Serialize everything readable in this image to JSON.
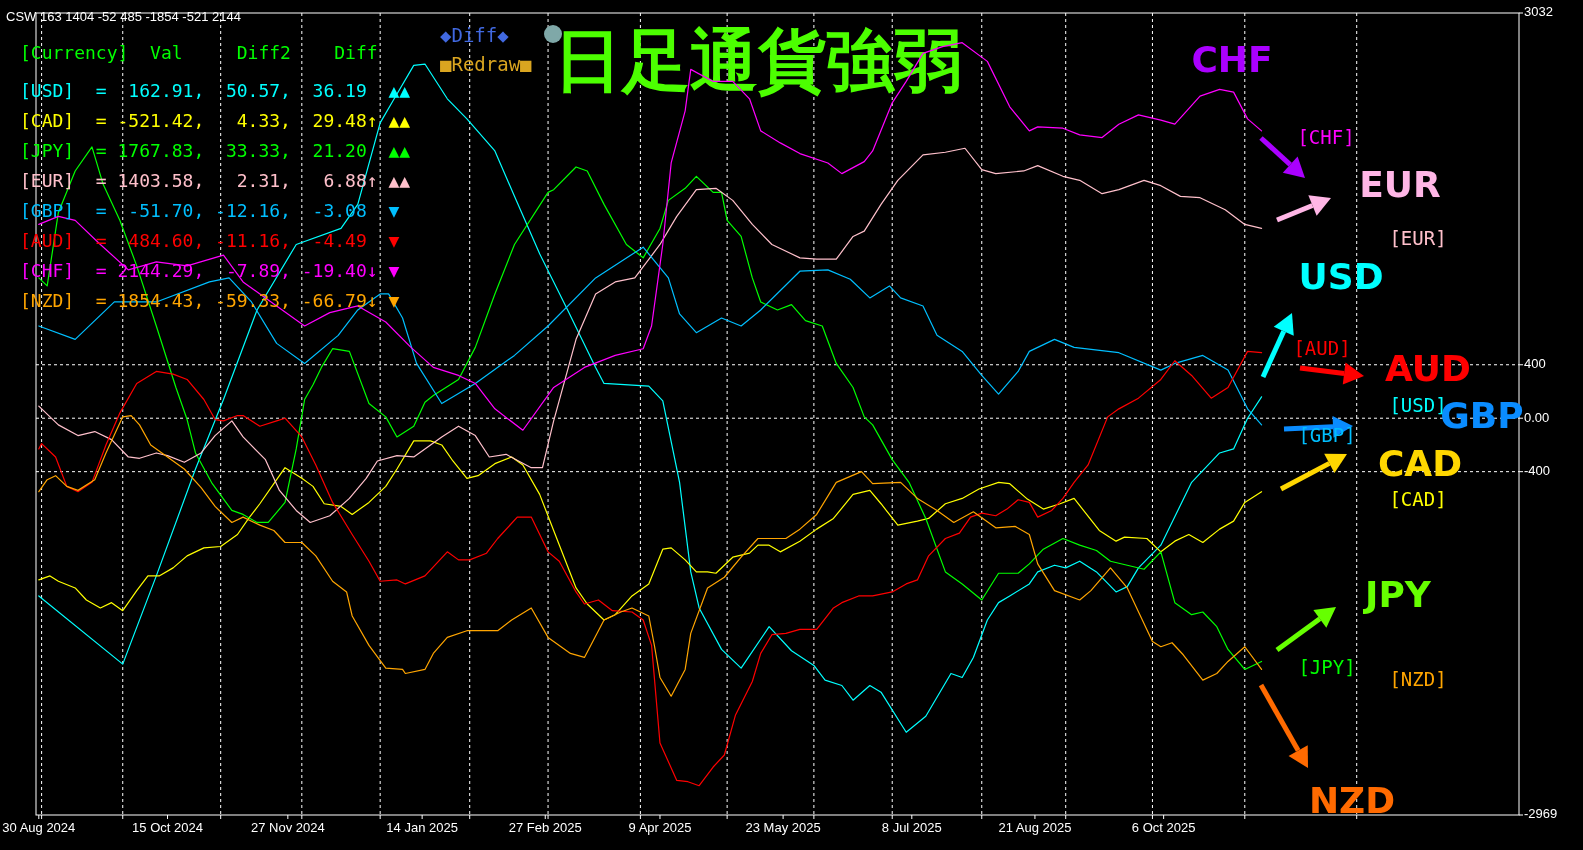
{
  "chart_data": {
    "type": "line",
    "title": "日足通貨強弱",
    "xlim": [
      "2024-08-29",
      "2026-02-10"
    ],
    "xticks": [
      {
        "value": "2024-08-30",
        "label": "30 Aug 2024"
      },
      {
        "value": "2024-10-15",
        "label": "15 Oct 2024"
      },
      {
        "value": "2024-11-27",
        "label": "27 Nov 2024"
      },
      {
        "value": "2025-01-14",
        "label": "14 Jan 2025"
      },
      {
        "value": "2025-02-27",
        "label": "27 Feb 2025"
      },
      {
        "value": "2025-04-09",
        "label": "9 Apr 2025"
      },
      {
        "value": "2025-05-23",
        "label": "23 May 2025"
      },
      {
        "value": "2025-07-08",
        "label": "8 Jul 2025"
      },
      {
        "value": "2025-08-21",
        "label": "21 Aug 2025"
      },
      {
        "value": "2025-10-06",
        "label": "6 Oct 2025"
      },
      {
        "value": "2024-08-31",
        "label": null
      },
      {
        "value": "2024-09-29",
        "label": null
      },
      {
        "value": "2024-11-03",
        "label": null
      },
      {
        "value": "2024-12-02",
        "label": null
      },
      {
        "value": "2024-12-30",
        "label": null
      },
      {
        "value": "2025-01-31",
        "label": null
      },
      {
        "value": "2025-02-28",
        "label": null
      },
      {
        "value": "2025-04-02",
        "label": null
      },
      {
        "value": "2025-05-03",
        "label": null
      },
      {
        "value": "2025-06-03",
        "label": null
      },
      {
        "value": "2025-07-01",
        "label": null
      },
      {
        "value": "2025-08-02",
        "label": null
      },
      {
        "value": "2025-09-01",
        "label": null
      },
      {
        "value": "2025-10-02",
        "label": null
      },
      {
        "value": "2025-11-04",
        "label": null
      },
      {
        "value": "2025-12-14",
        "label": null
      }
    ],
    "ylim": [
      -2969,
      3032
    ],
    "yticks": [
      3032,
      400,
      {
        "value": 0,
        "label": "0.00"
      },
      -400,
      -2969
    ],
    "grid": true,
    "series": [
      {
        "color": "#00ffff",
        "x": [
          "2024-08-30",
          "2024-09-29",
          "2024-10-11",
          "2024-10-25",
          "2024-11-04",
          "2024-11-16",
          "2024-11-30",
          "2024-12-16",
          "2024-12-22",
          "2024-12-30",
          "2025-01-04",
          "2025-01-11",
          "2025-01-15",
          "2025-01-23",
          "2025-01-30",
          "2025-02-09",
          "2025-02-16",
          "2025-02-25",
          "2025-03-07",
          "2025-03-17",
          "2025-03-20",
          "2025-04-05",
          "2025-04-10",
          "2025-04-16",
          "2025-04-20",
          "2025-04-23",
          "2025-05-01",
          "2025-05-08",
          "2025-05-18",
          "2025-05-26",
          "2025-06-03",
          "2025-06-07",
          "2025-06-13",
          "2025-06-17",
          "2025-06-23",
          "2025-06-27",
          "2025-07-06",
          "2025-07-13",
          "2025-07-22",
          "2025-07-26",
          "2025-07-30",
          "2025-08-04",
          "2025-08-08",
          "2025-08-12",
          "2025-08-19",
          "2025-08-22",
          "2025-08-28",
          "2025-09-01",
          "2025-09-06",
          "2025-09-12",
          "2025-09-19",
          "2025-09-23",
          "2025-09-27",
          "2025-10-05",
          "2025-10-16",
          "2025-10-26",
          "2025-10-31",
          "2025-11-05",
          "2025-11-10"
        ],
        "values": [
          -1330,
          -1840,
          -1180,
          -380,
          140,
          810,
          1300,
          1420,
          1600,
          2210,
          2390,
          2640,
          2650,
          2390,
          2240,
          2000,
          1660,
          1230,
          810,
          380,
          260,
          240,
          130,
          -480,
          -1150,
          -1420,
          -1730,
          -1870,
          -1560,
          -1740,
          -1850,
          -1960,
          -2000,
          -2110,
          -2000,
          -2050,
          -2350,
          -2230,
          -1910,
          -1940,
          -1790,
          -1510,
          -1380,
          -1330,
          -1240,
          -1150,
          -1100,
          -1120,
          -1070,
          -1150,
          -1300,
          -1260,
          -1120,
          -950,
          -480,
          -260,
          -230,
          0,
          160
        ]
      },
      {
        "color": "#ffff00",
        "x": [
          "2024-08-30",
          "2024-09-03",
          "2024-09-06",
          "2024-09-12",
          "2024-09-16",
          "2024-09-21",
          "2024-09-25",
          "2024-09-29",
          "2024-10-04",
          "2024-10-08",
          "2024-10-12",
          "2024-10-17",
          "2024-10-22",
          "2024-10-28",
          "2024-11-03",
          "2024-11-09",
          "2024-11-13",
          "2024-11-17",
          "2024-11-23",
          "2024-11-26",
          "2024-12-02",
          "2024-12-06",
          "2024-12-10",
          "2024-12-16",
          "2024-12-20",
          "2024-12-26",
          "2025-01-01",
          "2025-01-05",
          "2025-01-11",
          "2025-01-17",
          "2025-01-21",
          "2025-01-25",
          "2025-01-30",
          "2025-02-03",
          "2025-02-09",
          "2025-02-15",
          "2025-02-19",
          "2025-02-25",
          "2025-03-02",
          "2025-03-10",
          "2025-03-14",
          "2025-03-20",
          "2025-03-24",
          "2025-03-30",
          "2025-04-05",
          "2025-04-10",
          "2025-04-13",
          "2025-04-18",
          "2025-04-22",
          "2025-04-26",
          "2025-04-29",
          "2025-05-05",
          "2025-05-11",
          "2025-05-14",
          "2025-05-18",
          "2025-05-22",
          "2025-05-29",
          "2025-06-04",
          "2025-06-10",
          "2025-06-17",
          "2025-06-23",
          "2025-06-27",
          "2025-07-03",
          "2025-07-10",
          "2025-07-14",
          "2025-07-20",
          "2025-07-26",
          "2025-08-01",
          "2025-08-08",
          "2025-08-12",
          "2025-08-18",
          "2025-08-24",
          "2025-08-30",
          "2025-09-04",
          "2025-09-13",
          "2025-09-19",
          "2025-09-22",
          "2025-09-30",
          "2025-10-05",
          "2025-10-10",
          "2025-10-15",
          "2025-10-20",
          "2025-10-26",
          "2025-10-31",
          "2025-11-04",
          "2025-11-10"
        ],
        "values": [
          -1210,
          -1180,
          -1220,
          -1270,
          -1360,
          -1420,
          -1380,
          -1440,
          -1290,
          -1180,
          -1180,
          -1120,
          -1030,
          -970,
          -960,
          -870,
          -750,
          -640,
          -460,
          -370,
          -450,
          -510,
          -640,
          -660,
          -720,
          -630,
          -510,
          -380,
          -170,
          -170,
          -200,
          -320,
          -450,
          -430,
          -340,
          -290,
          -350,
          -570,
          -840,
          -1270,
          -1390,
          -1510,
          -1470,
          -1330,
          -1240,
          -980,
          -970,
          -1060,
          -1150,
          -1150,
          -1160,
          -1040,
          -1010,
          -950,
          -950,
          -1000,
          -920,
          -830,
          -750,
          -570,
          -540,
          -640,
          -800,
          -770,
          -750,
          -640,
          -600,
          -530,
          -480,
          -490,
          -600,
          -680,
          -640,
          -600,
          -840,
          -920,
          -890,
          -900,
          -1000,
          -920,
          -870,
          -930,
          -830,
          -770,
          -630,
          -550
        ]
      },
      {
        "color": "#00ff00",
        "x": [
          "2024-08-30",
          "2024-09-02",
          "2024-09-06",
          "2024-09-12",
          "2024-09-18",
          "2024-09-22",
          "2024-09-28",
          "2024-10-04",
          "2024-10-11",
          "2024-10-18",
          "2024-10-22",
          "2024-10-25",
          "2024-10-31",
          "2024-11-07",
          "2024-11-11",
          "2024-11-16",
          "2024-11-20",
          "2024-11-26",
          "2024-11-30",
          "2024-12-03",
          "2024-12-06",
          "2024-12-09",
          "2024-12-13",
          "2024-12-19",
          "2024-12-26",
          "2025-01-01",
          "2025-01-05",
          "2025-01-11",
          "2025-01-15",
          "2025-01-18",
          "2025-01-27",
          "2025-02-02",
          "2025-02-09",
          "2025-02-16",
          "2025-02-28",
          "2025-03-02",
          "2025-03-10",
          "2025-03-14",
          "2025-03-20",
          "2025-03-28",
          "2025-04-03",
          "2025-04-09",
          "2025-04-12",
          "2025-04-18",
          "2025-04-22",
          "2025-04-28",
          "2025-05-01",
          "2025-05-03",
          "2025-05-08",
          "2025-05-12",
          "2025-05-15",
          "2025-05-21",
          "2025-05-26",
          "2025-05-31",
          "2025-06-06",
          "2025-06-11",
          "2025-06-17",
          "2025-06-21",
          "2025-06-24",
          "2025-07-01",
          "2025-07-07",
          "2025-07-13",
          "2025-07-20",
          "2025-07-26",
          "2025-08-02",
          "2025-08-08",
          "2025-08-15",
          "2025-08-19",
          "2025-08-24",
          "2025-08-31",
          "2025-09-06",
          "2025-09-12",
          "2025-09-17",
          "2025-09-23",
          "2025-09-29",
          "2025-10-05",
          "2025-10-10",
          "2025-10-16",
          "2025-10-20",
          "2025-10-25",
          "2025-10-29",
          "2025-11-04",
          "2025-11-10"
        ],
        "values": [
          1050,
          990,
          1540,
          1850,
          2030,
          1750,
          1480,
          1140,
          690,
          230,
          -10,
          -260,
          -490,
          -690,
          -720,
          -780,
          -780,
          -630,
          -230,
          140,
          250,
          380,
          520,
          500,
          110,
          10,
          -140,
          -60,
          120,
          170,
          290,
          530,
          930,
          1300,
          1690,
          1710,
          1880,
          1850,
          1600,
          1300,
          1200,
          1420,
          1630,
          1720,
          1810,
          1690,
          1690,
          1480,
          1360,
          1050,
          870,
          810,
          850,
          730,
          690,
          410,
          230,
          10,
          -50,
          -310,
          -480,
          -750,
          -1150,
          -1240,
          -1360,
          -1160,
          -1160,
          -1090,
          -980,
          -900,
          -950,
          -990,
          -1070,
          -1100,
          -1130,
          -1000,
          -1380,
          -1470,
          -1450,
          -1560,
          -1730,
          -1880,
          -1820
        ]
      },
      {
        "color": "#ffc0cb",
        "x": [
          "2024-08-30",
          "2024-09-06",
          "2024-09-13",
          "2024-09-19",
          "2024-09-25",
          "2024-10-01",
          "2024-10-05",
          "2024-10-11",
          "2024-10-15",
          "2024-10-21",
          "2024-10-27",
          "2024-11-01",
          "2024-11-07",
          "2024-11-11",
          "2024-11-19",
          "2024-11-24",
          "2024-11-30",
          "2024-12-05",
          "2024-12-12",
          "2024-12-19",
          "2024-12-25",
          "2024-12-29",
          "2025-01-05",
          "2025-01-11",
          "2025-01-21",
          "2025-01-27",
          "2025-02-02",
          "2025-02-07",
          "2025-02-13",
          "2025-02-22",
          "2025-02-26",
          "2025-03-02",
          "2025-03-10",
          "2025-03-17",
          "2025-03-24",
          "2025-03-31",
          "2025-04-09",
          "2025-04-15",
          "2025-04-22",
          "2025-04-29",
          "2025-05-05",
          "2025-05-12",
          "2025-05-19",
          "2025-05-29",
          "2025-06-04",
          "2025-06-11",
          "2025-06-17",
          "2025-06-21",
          "2025-06-27",
          "2025-07-03",
          "2025-07-12",
          "2025-07-20",
          "2025-07-27",
          "2025-08-02",
          "2025-08-07",
          "2025-08-17",
          "2025-08-22",
          "2025-08-31",
          "2025-09-06",
          "2025-09-14",
          "2025-09-20",
          "2025-09-29",
          "2025-10-05",
          "2025-10-12",
          "2025-10-19",
          "2025-10-28",
          "2025-11-04",
          "2025-11-10"
        ],
        "values": [
          90,
          -50,
          -130,
          -100,
          -160,
          -290,
          -300,
          -260,
          -280,
          -330,
          -260,
          -130,
          -20,
          -140,
          -310,
          -540,
          -690,
          -780,
          -730,
          -600,
          -450,
          -320,
          -280,
          -290,
          -140,
          -60,
          -130,
          -290,
          -270,
          -370,
          -370,
          -20,
          590,
          930,
          1020,
          1050,
          1300,
          1510,
          1710,
          1720,
          1630,
          1450,
          1300,
          1200,
          1190,
          1190,
          1360,
          1400,
          1600,
          1780,
          1970,
          1990,
          2020,
          1860,
          1830,
          1850,
          1890,
          1810,
          1780,
          1680,
          1710,
          1780,
          1740,
          1660,
          1650,
          1560,
          1450,
          1420
        ]
      },
      {
        "color": "#00bfff",
        "x": [
          "2024-08-30",
          "2024-09-12",
          "2024-09-26",
          "2024-10-11",
          "2024-10-30",
          "2024-11-06",
          "2024-11-14",
          "2024-11-23",
          "2024-12-03",
          "2024-12-15",
          "2024-12-22",
          "2024-12-30",
          "2025-01-02",
          "2025-01-07",
          "2025-01-12",
          "2025-01-21",
          "2025-02-02",
          "2025-02-16",
          "2025-02-28",
          "2025-03-17",
          "2025-04-03",
          "2025-04-12",
          "2025-04-16",
          "2025-04-22",
          "2025-05-01",
          "2025-05-08",
          "2025-05-15",
          "2025-05-29",
          "2025-06-08",
          "2025-06-16",
          "2025-06-23",
          "2025-06-30",
          "2025-07-04",
          "2025-07-12",
          "2025-07-17",
          "2025-07-26",
          "2025-08-02",
          "2025-08-08",
          "2025-08-15",
          "2025-08-19",
          "2025-08-28",
          "2025-09-04",
          "2025-09-20",
          "2025-10-05",
          "2025-10-10",
          "2025-10-20",
          "2025-10-29",
          "2025-11-05",
          "2025-11-10"
        ],
        "values": [
          690,
          590,
          870,
          870,
          1020,
          1050,
          870,
          560,
          410,
          620,
          810,
          930,
          930,
          750,
          410,
          110,
          260,
          470,
          690,
          1050,
          1280,
          1050,
          780,
          640,
          750,
          690,
          810,
          1100,
          1110,
          1040,
          900,
          990,
          900,
          840,
          620,
          500,
          320,
          180,
          350,
          500,
          590,
          530,
          490,
          360,
          410,
          470,
          360,
          70,
          -50
        ]
      },
      {
        "color": "#ff0000",
        "x": [
          "2024-08-30",
          "2024-08-31",
          "2024-09-05",
          "2024-09-09",
          "2024-09-13",
          "2024-09-18",
          "2024-09-23",
          "2024-09-28",
          "2024-10-04",
          "2024-10-11",
          "2024-10-17",
          "2024-10-22",
          "2024-10-28",
          "2024-11-01",
          "2024-11-04",
          "2024-11-09",
          "2024-11-11",
          "2024-11-17",
          "2024-11-23",
          "2024-11-26",
          "2024-12-02",
          "2024-12-07",
          "2024-12-13",
          "2024-12-20",
          "2024-12-26",
          "2024-12-30",
          "2025-01-05",
          "2025-01-08",
          "2025-01-15",
          "2025-01-23",
          "2025-01-27",
          "2025-01-31",
          "2025-02-06",
          "2025-02-10",
          "2025-02-17",
          "2025-02-22",
          "2025-02-28",
          "2025-03-04",
          "2025-03-10",
          "2025-03-13",
          "2025-03-18",
          "2025-03-23",
          "2025-03-30",
          "2025-04-03",
          "2025-04-06",
          "2025-04-09",
          "2025-04-15",
          "2025-04-19",
          "2025-04-23",
          "2025-04-28",
          "2025-05-02",
          "2025-05-06",
          "2025-05-12",
          "2025-05-15",
          "2025-05-19",
          "2025-05-24",
          "2025-05-29",
          "2025-06-04",
          "2025-06-10",
          "2025-06-13",
          "2025-06-19",
          "2025-06-24",
          "2025-07-01",
          "2025-07-06",
          "2025-07-10",
          "2025-07-14",
          "2025-07-20",
          "2025-07-25",
          "2025-07-29",
          "2025-08-02",
          "2025-08-07",
          "2025-08-11",
          "2025-08-15",
          "2025-08-19",
          "2025-08-22",
          "2025-08-27",
          "2025-08-31",
          "2025-09-04",
          "2025-09-09",
          "2025-09-16",
          "2025-09-20",
          "2025-09-27",
          "2025-10-05",
          "2025-10-10",
          "2025-10-16",
          "2025-10-23",
          "2025-10-29",
          "2025-11-05",
          "2025-11-10"
        ],
        "values": [
          -230,
          -190,
          -290,
          -510,
          -550,
          -480,
          -200,
          40,
          260,
          350,
          330,
          290,
          140,
          -10,
          -20,
          20,
          20,
          -60,
          -20,
          0,
          -140,
          -350,
          -630,
          -870,
          -1070,
          -1220,
          -1210,
          -1240,
          -1180,
          -1000,
          -1060,
          -1060,
          -1010,
          -900,
          -740,
          -740,
          -1000,
          -1070,
          -1300,
          -1390,
          -1360,
          -1440,
          -1450,
          -1510,
          -1700,
          -2430,
          -2710,
          -2720,
          -2750,
          -2610,
          -2520,
          -2220,
          -1970,
          -1760,
          -1620,
          -1610,
          -1580,
          -1580,
          -1420,
          -1380,
          -1330,
          -1330,
          -1300,
          -1240,
          -1210,
          -1030,
          -900,
          -860,
          -740,
          -710,
          -730,
          -680,
          -610,
          -630,
          -740,
          -690,
          -600,
          -480,
          -350,
          10,
          70,
          150,
          290,
          430,
          320,
          150,
          230,
          500,
          490
        ]
      },
      {
        "color": "#ff00ff",
        "x": [
          "2024-08-30",
          "2024-09-06",
          "2024-09-12",
          "2024-09-21",
          "2024-10-01",
          "2024-10-11",
          "2024-10-22",
          "2024-11-04",
          "2024-11-11",
          "2024-11-23",
          "2024-12-03",
          "2024-12-12",
          "2024-12-22",
          "2025-01-01",
          "2025-01-10",
          "2025-01-18",
          "2025-01-27",
          "2025-02-02",
          "2025-02-09",
          "2025-02-19",
          "2025-03-02",
          "2025-03-13",
          "2025-03-24",
          "2025-04-03",
          "2025-04-06",
          "2025-04-10",
          "2025-04-13",
          "2025-04-18",
          "2025-04-20",
          "2025-04-28",
          "2025-05-05",
          "2025-05-11",
          "2025-05-15",
          "2025-05-22",
          "2025-05-29",
          "2025-06-08",
          "2025-06-13",
          "2025-06-21",
          "2025-06-24",
          "2025-07-01",
          "2025-07-06",
          "2025-07-12",
          "2025-07-19",
          "2025-07-26",
          "2025-08-04",
          "2025-08-12",
          "2025-08-19",
          "2025-08-22",
          "2025-08-31",
          "2025-09-06",
          "2025-09-14",
          "2025-09-20",
          "2025-09-27",
          "2025-10-05",
          "2025-10-10",
          "2025-10-19",
          "2025-10-26",
          "2025-10-31",
          "2025-11-05",
          "2025-11-10"
        ],
        "values": [
          1450,
          1510,
          1480,
          1300,
          1110,
          1170,
          1140,
          1220,
          1020,
          840,
          690,
          790,
          840,
          720,
          530,
          380,
          320,
          260,
          70,
          -90,
          230,
          380,
          470,
          520,
          690,
          1300,
          1910,
          2300,
          2610,
          2520,
          2520,
          2390,
          2150,
          2060,
          1980,
          1910,
          1830,
          1920,
          2000,
          2360,
          2520,
          2730,
          2780,
          2810,
          2670,
          2330,
          2150,
          2180,
          2170,
          2120,
          2100,
          2200,
          2270,
          2230,
          2200,
          2410,
          2460,
          2440,
          2240,
          2150
        ]
      },
      {
        "color": "#ffa500",
        "x": [
          "2024-08-30",
          "2024-09-02",
          "2024-09-05",
          "2024-09-09",
          "2024-09-13",
          "2024-09-19",
          "2024-09-23",
          "2024-09-29",
          "2024-10-02",
          "2024-10-05",
          "2024-10-09",
          "2024-10-15",
          "2024-10-21",
          "2024-10-27",
          "2024-11-01",
          "2024-11-07",
          "2024-11-11",
          "2024-11-17",
          "2024-11-22",
          "2024-11-26",
          "2024-12-02",
          "2024-12-07",
          "2024-12-13",
          "2024-12-18",
          "2024-12-20",
          "2024-12-26",
          "2025-01-01",
          "2025-01-07",
          "2025-01-08",
          "2025-01-15",
          "2025-01-18",
          "2025-01-23",
          "2025-01-30",
          "2025-02-10",
          "2025-02-15",
          "2025-02-22",
          "2025-02-28",
          "2025-03-02",
          "2025-03-08",
          "2025-03-13",
          "2025-03-20",
          "2025-03-26",
          "2025-03-30",
          "2025-04-05",
          "2025-04-07",
          "2025-04-09",
          "2025-04-13",
          "2025-04-18",
          "2025-04-20",
          "2025-04-26",
          "2025-05-02",
          "2025-05-08",
          "2025-05-14",
          "2025-05-18",
          "2025-05-24",
          "2025-05-29",
          "2025-06-04",
          "2025-06-11",
          "2025-06-20",
          "2025-06-24",
          "2025-07-04",
          "2025-07-10",
          "2025-07-17",
          "2025-07-23",
          "2025-07-30",
          "2025-08-07",
          "2025-08-14",
          "2025-08-19",
          "2025-08-22",
          "2025-08-28",
          "2025-09-06",
          "2025-09-10",
          "2025-09-17",
          "2025-09-23",
          "2025-10-02",
          "2025-10-05",
          "2025-10-09",
          "2025-10-13",
          "2025-10-20",
          "2025-10-25",
          "2025-10-29",
          "2025-11-04",
          "2025-11-10"
        ],
        "values": [
          -550,
          -460,
          -430,
          -510,
          -540,
          -460,
          -260,
          10,
          20,
          -50,
          -200,
          -290,
          -380,
          -520,
          -660,
          -780,
          -740,
          -800,
          -840,
          -930,
          -930,
          -1030,
          -1220,
          -1300,
          -1480,
          -1700,
          -1870,
          -1880,
          -1910,
          -1880,
          -1760,
          -1640,
          -1590,
          -1590,
          -1510,
          -1420,
          -1640,
          -1670,
          -1760,
          -1790,
          -1510,
          -1450,
          -1420,
          -1480,
          -1700,
          -1940,
          -2080,
          -1880,
          -1610,
          -1270,
          -1190,
          -1040,
          -900,
          -900,
          -900,
          -830,
          -720,
          -480,
          -400,
          -490,
          -480,
          -600,
          -690,
          -780,
          -700,
          -820,
          -810,
          -870,
          -1090,
          -1290,
          -1360,
          -1290,
          -1120,
          -1270,
          -1670,
          -1710,
          -1680,
          -1770,
          -1960,
          -1910,
          -1820,
          -1710,
          -1880
        ]
      }
    ],
    "annotations": [
      "CSW 163 1404 -52 485 -1854 -521 2144",
      "[Currency]  Val     Diff2    Diff",
      "[USD]  =  162.91,  50.57,  36.19  ▲▲",
      "[CAD]  = -521.42,   4.33,  29.48↑ ▲▲",
      "[JPY]  = 1767.83,  33.33,  21.20  ▲▲",
      "[EUR]  = 1403.58,   2.31,   6.88↑ ▲▲",
      "[GBP]  =  -51.70, -12.16,  -3.08  ▼",
      "[AUD]  =  484.60, -11.16,  -4.49  ▼",
      "[CHF]  = 2144.29,  -7.89, -19.40↓ ▼",
      "[NZD]  = 1854.43, -59.33, -66.79↓ ▼",
      "◆Diff◆",
      "■Redraw■",
      "CHF",
      "EUR",
      "USD",
      "AUD",
      "GBP",
      "CAD",
      "JPY",
      "NZD",
      "[CHF]",
      "[EUR]",
      "[AUD]",
      "[USD]",
      "[GBP]",
      "[CAD]",
      "[JPY]",
      "[NZD]"
    ]
  }
}
